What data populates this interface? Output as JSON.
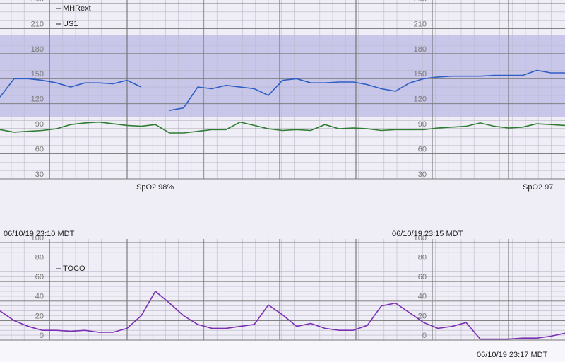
{
  "chart_data": [
    {
      "type": "line",
      "ylim": [
        30,
        240
      ],
      "yticks": [
        30,
        60,
        90,
        120,
        150,
        180,
        210,
        240
      ],
      "grid": true,
      "series": [
        {
          "name": "MHRext",
          "color": "#2e7d32",
          "values": [
            89,
            86,
            87,
            88,
            90,
            95,
            97,
            98,
            96,
            94,
            93,
            95,
            85,
            85,
            87,
            89,
            89,
            98,
            94,
            90,
            88,
            89,
            88,
            95,
            90,
            91,
            90,
            88,
            89,
            89,
            89,
            91,
            92,
            93,
            97,
            93,
            91,
            92,
            96,
            95,
            94
          ]
        },
        {
          "name": "US1",
          "color": "#2f5fc4",
          "values": [
            128,
            150,
            150,
            148,
            145,
            140,
            145,
            145,
            144,
            148,
            140,
            null,
            112,
            115,
            140,
            138,
            142,
            140,
            138,
            130,
            148,
            150,
            145,
            145,
            146,
            146,
            143,
            138,
            135,
            145,
            150,
            152,
            153,
            153,
            153,
            154,
            154,
            154,
            160,
            157,
            157
          ]
        }
      ],
      "annotations": [
        "SpO2  98%",
        "SpO2  97"
      ]
    },
    {
      "type": "line",
      "ylim": [
        0,
        100
      ],
      "yticks": [
        0,
        20,
        40,
        60,
        80,
        100
      ],
      "grid": true,
      "series": [
        {
          "name": "TOCO",
          "color": "#7b2fb5",
          "values": [
            30,
            20,
            14,
            10,
            10,
            9,
            10,
            8,
            8,
            12,
            25,
            50,
            38,
            25,
            16,
            12,
            12,
            14,
            16,
            36,
            26,
            14,
            17,
            12,
            10,
            10,
            15,
            35,
            38,
            28,
            18,
            12,
            14,
            18,
            1,
            1,
            1,
            2,
            2,
            4,
            7
          ]
        }
      ],
      "annotations": [
        "06/10/19 23:10 MDT",
        "06/10/19 23:15 MDT",
        "06/10/19 23:17 MDT"
      ]
    }
  ]
}
